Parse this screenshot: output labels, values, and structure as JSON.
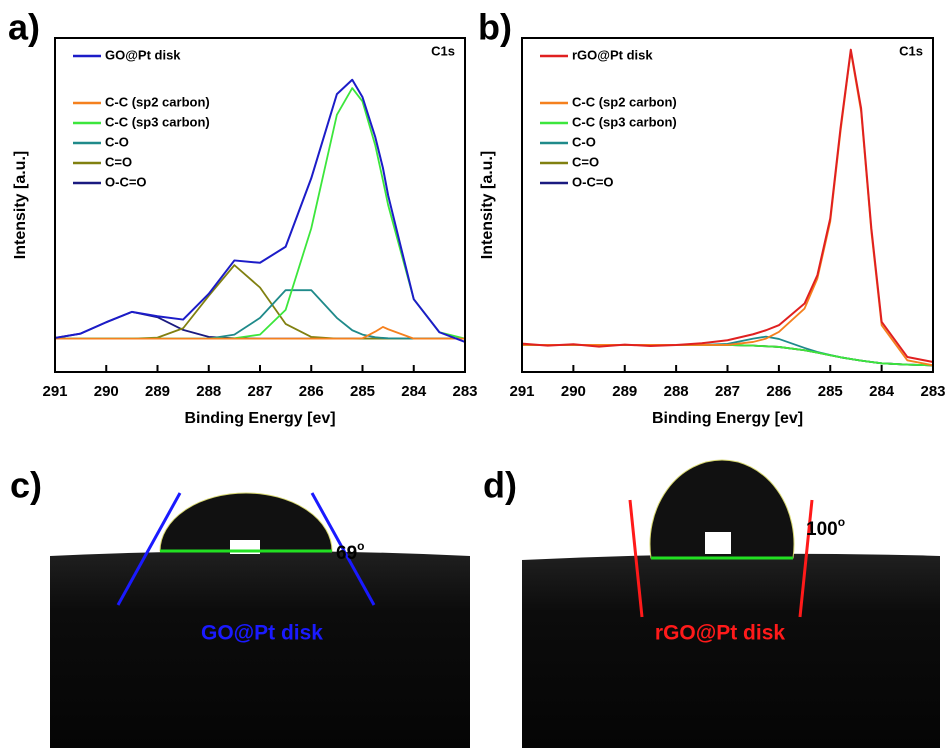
{
  "chart_data": [
    {
      "type": "line",
      "panel_label": "a)",
      "annotation": "C1s",
      "xlabel": "Binding Energy [ev]",
      "ylabel": "Intensity [a.u.]",
      "x": [
        291,
        290.5,
        290,
        289.5,
        289,
        288.5,
        288,
        287.5,
        287,
        286.5,
        286,
        285.5,
        285.2,
        285,
        284.75,
        284.6,
        284.5,
        284,
        283.5,
        283
      ],
      "xlim": [
        291,
        283
      ],
      "xticks": [
        291,
        290,
        289,
        288,
        287,
        286,
        285,
        284,
        283
      ],
      "ylim": [
        0,
        100
      ],
      "series": [
        {
          "name": "GO@Pt disk",
          "color": "#1c1cc8",
          "values": [
            10.2,
            11.5,
            14.9,
            18,
            16.7,
            15.7,
            23.4,
            33.4,
            32.7,
            37.5,
            58,
            83.2,
            87.5,
            82.3,
            70.3,
            61,
            52.9,
            21.8,
            11.9,
            9
          ]
        },
        {
          "name": "C-C (sp2 carbon)",
          "color": "#f5801e",
          "values": [
            10,
            10,
            10,
            10,
            10,
            10,
            10,
            10,
            10,
            10,
            10,
            10,
            10,
            10.1,
            12.1,
            13.5,
            12.8,
            10,
            10,
            10
          ]
        },
        {
          "name": "C-C (sp3 carbon)",
          "color": "#3ce63c",
          "values": [
            10,
            10,
            10,
            10,
            10,
            10,
            10,
            10.1,
            11.2,
            18.6,
            43,
            77,
            85,
            81,
            67.8,
            57.3,
            50,
            21.8,
            11.9,
            10
          ]
        },
        {
          "name": "C-O",
          "color": "#1f8a8a",
          "values": [
            10,
            10,
            10,
            10,
            10,
            10,
            10,
            11.2,
            16.2,
            24.5,
            24.5,
            16.2,
            12.5,
            11.2,
            10.4,
            10.2,
            10.1,
            10,
            10,
            10
          ]
        },
        {
          "name": "C=O",
          "color": "#808010",
          "values": [
            10,
            10,
            10,
            10,
            10.3,
            13.1,
            22.8,
            32,
            25.3,
            14.4,
            10.5,
            10,
            10,
            10,
            10,
            10,
            10,
            10,
            10,
            10
          ]
        },
        {
          "name": "O-C=O",
          "color": "#1a1a80",
          "values": [
            10.2,
            11.5,
            14.9,
            18,
            16.4,
            12.6,
            10.5,
            10.1,
            10,
            10,
            10,
            10,
            10,
            10,
            10,
            10,
            10,
            10,
            10,
            10
          ]
        }
      ]
    },
    {
      "type": "line",
      "panel_label": "b)",
      "annotation": "C1s",
      "xlabel": "Binding Energy [ev]",
      "ylabel": "Intensity [a.u.]",
      "x": [
        291,
        290.5,
        290,
        289.5,
        289,
        288.5,
        288,
        287.5,
        287,
        286.5,
        286.25,
        286,
        285.5,
        285.25,
        285,
        284.8,
        284.6,
        284.4,
        284.2,
        284,
        283.5,
        283
      ],
      "xlim": [
        291,
        283
      ],
      "xticks": [
        291,
        290,
        289,
        288,
        287,
        286,
        285,
        284,
        283
      ],
      "ylim": [
        0,
        100
      ],
      "series": [
        {
          "name": "rGO@Pt disk",
          "color": "#e02020",
          "values": [
            8.5,
            7.9,
            8.3,
            7.6,
            8.2,
            7.8,
            8.1,
            8.6,
            9.5,
            11.3,
            12.5,
            14,
            20.5,
            29,
            46,
            73,
            96.5,
            79,
            43,
            15,
            4.5,
            3
          ]
        },
        {
          "name": "C-C (sp2 carbon)",
          "color": "#f5801e",
          "values": [
            8.1,
            8.1,
            8.1,
            8.1,
            8.1,
            8.1,
            8.1,
            8.1,
            8.1,
            9,
            10,
            12,
            19,
            28,
            45,
            72,
            96,
            78,
            42,
            14,
            3.5,
            2
          ]
        },
        {
          "name": "C-C (sp3 carbon)",
          "color": "#3ce63c",
          "values": [
            8.1,
            8.1,
            8.1,
            8.1,
            8.1,
            8.1,
            8.1,
            8.1,
            8.1,
            7.9,
            7.7,
            7.5,
            6.5,
            5.8,
            5,
            4.4,
            3.9,
            3.4,
            3,
            2.6,
            2.2,
            2
          ]
        },
        {
          "name": "C-O",
          "color": "#1f8a8a",
          "values": [
            8.1,
            8.1,
            8.1,
            8.1,
            8.1,
            8.1,
            8.1,
            8.1,
            8.4,
            10,
            10.6,
            9.9,
            7.2,
            6,
            5.1,
            4.4,
            3.9,
            3.4,
            3,
            2.6,
            2.2,
            2
          ]
        },
        {
          "name": "C=O",
          "color": "#808010",
          "values": [
            8.1,
            8.1,
            8.1,
            8.1,
            8.1,
            8.1,
            8.1,
            8.1,
            8.1,
            7.9,
            7.7,
            7.5,
            6.5,
            5.8,
            5,
            4.4,
            3.9,
            3.4,
            3,
            2.6,
            2.2,
            2
          ]
        },
        {
          "name": "O-C=O",
          "color": "#1a1a80",
          "values": [
            8.1,
            8.1,
            8.1,
            8.1,
            8.1,
            8.1,
            8.1,
            8.1,
            8.1,
            7.9,
            7.7,
            7.5,
            6.5,
            5.8,
            5,
            4.4,
            3.9,
            3.4,
            3,
            2.6,
            2.2,
            2
          ]
        }
      ]
    }
  ],
  "photos": [
    {
      "label": "c)",
      "angle": 69,
      "angle_sup": "o",
      "caption": "GO@Pt disk"
    },
    {
      "label": "d)",
      "angle": 100,
      "angle_sup": "o",
      "caption": "rGO@Pt disk"
    }
  ]
}
